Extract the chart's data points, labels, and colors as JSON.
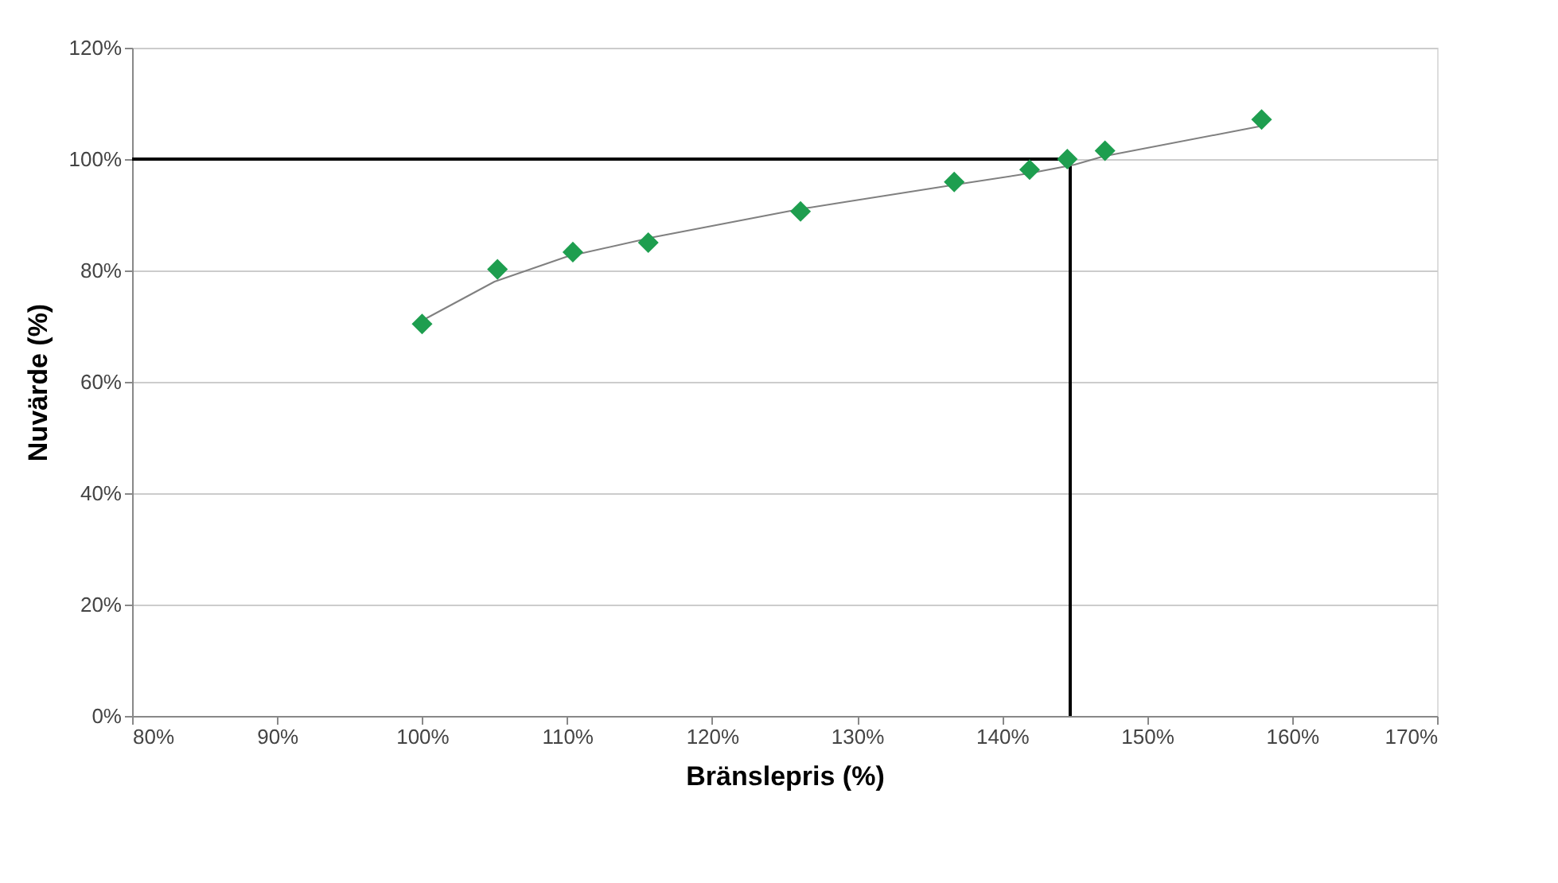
{
  "chart_data": {
    "type": "scatter",
    "xlabel": "Bränslepris (%)",
    "ylabel": "Nuvärde (%)",
    "xlim": [
      80,
      170
    ],
    "ylim": [
      0,
      120
    ],
    "xticks": [
      {
        "value": 80,
        "label": "80%"
      },
      {
        "value": 90,
        "label": "90%"
      },
      {
        "value": 100,
        "label": "100%"
      },
      {
        "value": 110,
        "label": "110%"
      },
      {
        "value": 120,
        "label": "120%"
      },
      {
        "value": 130,
        "label": "130%"
      },
      {
        "value": 140,
        "label": "140%"
      },
      {
        "value": 150,
        "label": "150%"
      },
      {
        "value": 160,
        "label": "160%"
      },
      {
        "value": 170,
        "label": "170%"
      }
    ],
    "yticks": [
      {
        "value": 0,
        "label": "0%"
      },
      {
        "value": 20,
        "label": "20%"
      },
      {
        "value": 40,
        "label": "40%"
      },
      {
        "value": 60,
        "label": "60%"
      },
      {
        "value": 80,
        "label": "80%"
      },
      {
        "value": 100,
        "label": "100%"
      },
      {
        "value": 120,
        "label": "120%"
      }
    ],
    "grid": "y",
    "series": [
      {
        "type": "line",
        "color": "#000000",
        "marker": "none",
        "x": [
          80,
          144.7,
          144.7
        ],
        "values": [
          100,
          100,
          0
        ]
      },
      {
        "type": "line",
        "color": "#808080",
        "marker": "none",
        "x": [
          100,
          105,
          110,
          116,
          126,
          137,
          142,
          145,
          147,
          158
        ],
        "values": [
          71,
          78,
          82.5,
          86,
          91,
          95.5,
          97.5,
          99,
          100.5,
          106
        ]
      },
      {
        "color": "#1e9e4f",
        "marker": "diamond",
        "x": [
          100,
          105.2,
          110.4,
          115.6,
          126.1,
          136.7,
          141.9,
          144.5,
          147.1,
          157.9
        ],
        "values": [
          70.4,
          80.2,
          83.3,
          85,
          90.6,
          95.9,
          98.1,
          100,
          101.5,
          107.1
        ]
      }
    ]
  }
}
